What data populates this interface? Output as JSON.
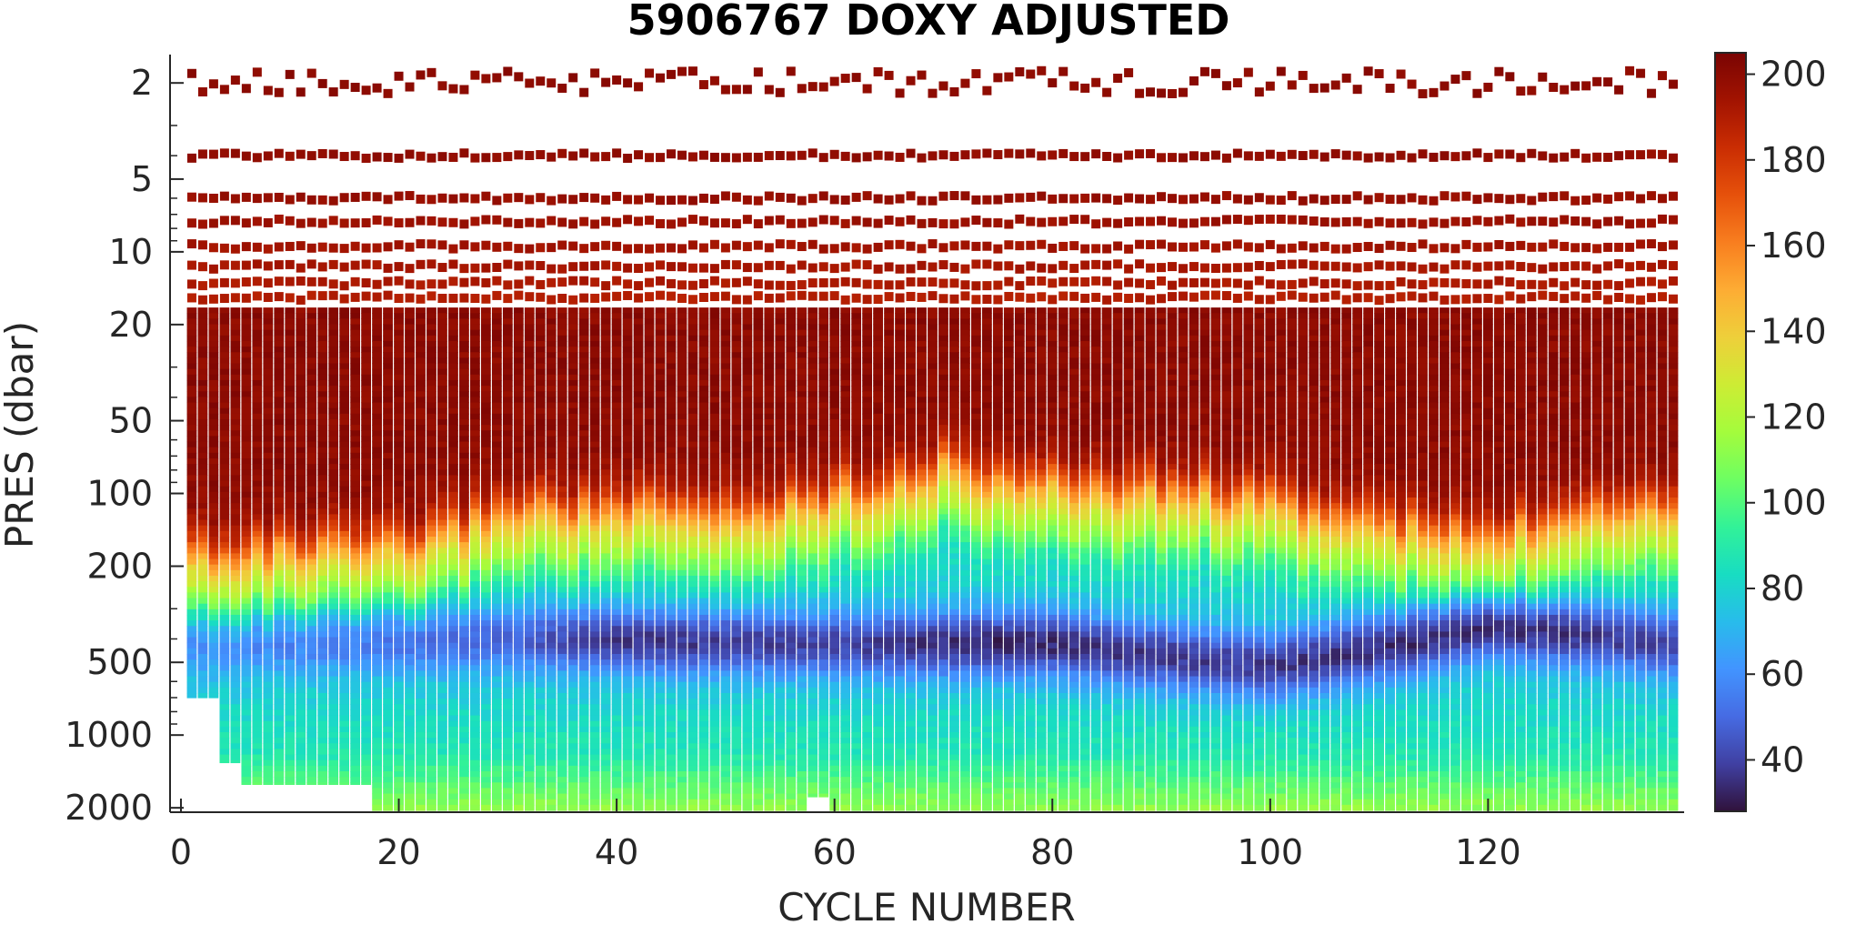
{
  "chart_data": {
    "type": "heatmap",
    "title": "5906767  DOXY ADJUSTED",
    "xlabel": "CYCLE NUMBER",
    "ylabel": "PRES (dbar)",
    "x_range": [
      -1,
      138
    ],
    "y_range": [
      1.5,
      2050
    ],
    "y_scale": "log",
    "y_direction": "reversed",
    "x_ticks": [
      0,
      20,
      40,
      60,
      80,
      100,
      120
    ],
    "x_tick_labels": [
      "0",
      "20",
      "40",
      "60",
      "80",
      "100",
      "120"
    ],
    "y_ticks": [
      2,
      5,
      10,
      20,
      50,
      100,
      200,
      500,
      1000,
      2000
    ],
    "y_tick_labels": [
      "2",
      "5",
      "10",
      "20",
      "50",
      "100",
      "200",
      "500",
      "1000",
      "2000"
    ],
    "colorbar": {
      "colormap": "turbo",
      "range": [
        28,
        205
      ],
      "ticks": [
        40,
        60,
        80,
        100,
        120,
        140,
        160,
        180,
        200
      ],
      "tick_labels": [
        "40",
        "60",
        "80",
        "100",
        "120",
        "140",
        "160",
        "180",
        "200"
      ]
    },
    "cycles": {
      "first": 1,
      "last": 137
    },
    "shallow_sample_levels_dbar": [
      2,
      4,
      6,
      7.5,
      9.5,
      11.5,
      13.5,
      15.5
    ],
    "profile_max_pressure_dbar": [
      {
        "from_cycle": 1,
        "to_cycle": 3,
        "max_pres": 700
      },
      {
        "from_cycle": 4,
        "to_cycle": 5,
        "max_pres": 1300
      },
      {
        "from_cycle": 6,
        "to_cycle": 17,
        "max_pres": 1600
      },
      {
        "from_cycle": 18,
        "to_cycle": 57,
        "max_pres": 2050
      },
      {
        "from_cycle": 58,
        "to_cycle": 59,
        "max_pres": 1800
      },
      {
        "from_cycle": 60,
        "to_cycle": 137,
        "max_pres": 2050
      }
    ],
    "grid": false,
    "legend": "colorbar-right",
    "structure": {
      "surface_layer_doxy": 200,
      "oxycline_center_dbar": [
        {
          "cycle": 1,
          "value": 170
        },
        {
          "cycle": 20,
          "value": 165
        },
        {
          "cycle": 30,
          "value": 110
        },
        {
          "cycle": 50,
          "value": 120
        },
        {
          "cycle": 70,
          "value": 75
        },
        {
          "cycle": 80,
          "value": 90
        },
        {
          "cycle": 95,
          "value": 95
        },
        {
          "cycle": 110,
          "value": 130
        },
        {
          "cycle": 120,
          "value": 150
        },
        {
          "cycle": 130,
          "value": 105
        },
        {
          "cycle": 137,
          "value": 110
        }
      ],
      "oxygen_minimum_doxy": [
        {
          "cycle": 1,
          "value": 58
        },
        {
          "cycle": 30,
          "value": 48
        },
        {
          "cycle": 40,
          "value": 36
        },
        {
          "cycle": 60,
          "value": 40
        },
        {
          "cycle": 75,
          "value": 32
        },
        {
          "cycle": 95,
          "value": 38
        },
        {
          "cycle": 110,
          "value": 34
        },
        {
          "cycle": 120,
          "value": 32
        },
        {
          "cycle": 137,
          "value": 40
        }
      ],
      "oxygen_minimum_depth_dbar": [
        {
          "cycle": 1,
          "value": 420
        },
        {
          "cycle": 30,
          "value": 400
        },
        {
          "cycle": 60,
          "value": 420
        },
        {
          "cycle": 80,
          "value": 420
        },
        {
          "cycle": 100,
          "value": 520
        },
        {
          "cycle": 120,
          "value": 350
        },
        {
          "cycle": 137,
          "value": 420
        }
      ],
      "deep_doxy": [
        {
          "pres": 700,
          "value": 80
        },
        {
          "pres": 1200,
          "value": 88
        },
        {
          "pres": 2000,
          "value": 112
        }
      ]
    }
  }
}
